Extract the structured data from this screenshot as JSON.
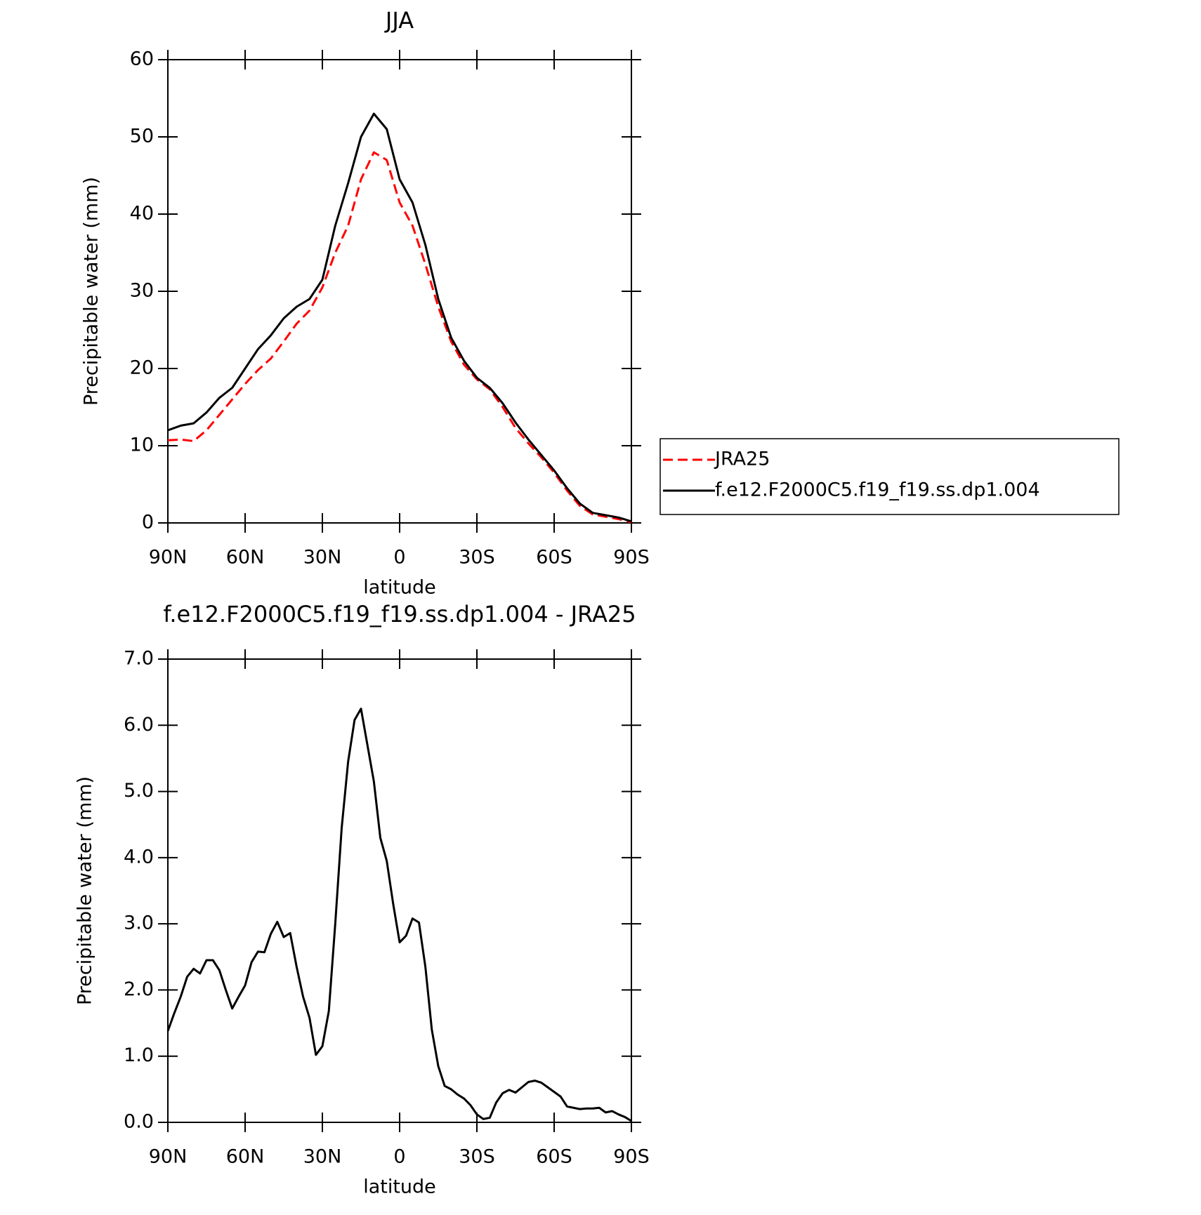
{
  "chart_data": [
    {
      "type": "line",
      "title": "JJA",
      "xlabel": "latitude",
      "ylabel": "Precipitable water (mm)",
      "x": [
        90,
        85,
        80,
        75,
        70,
        65,
        60,
        55,
        50,
        45,
        40,
        35,
        30,
        25,
        20,
        15,
        10,
        5,
        0,
        -5,
        -10,
        -15,
        -20,
        -25,
        -30,
        -35,
        -40,
        -45,
        -50,
        -55,
        -60,
        -65,
        -70,
        -75,
        -80,
        -85,
        -90
      ],
      "series": [
        {
          "name": "JRA25",
          "color": "#ff0000",
          "dashed": true,
          "values": [
            10.7,
            10.8,
            10.6,
            12.0,
            14.0,
            16.0,
            18.0,
            19.8,
            21.3,
            23.5,
            25.8,
            27.5,
            30.5,
            35.0,
            38.5,
            44.5,
            48.0,
            47.0,
            41.5,
            38.5,
            33.5,
            28.0,
            23.5,
            20.5,
            18.6,
            17.3,
            15.0,
            12.3,
            10.3,
            8.5,
            6.5,
            4.2,
            2.2,
            1.1,
            0.8,
            0.5,
            0.1
          ]
        },
        {
          "name": "f.e12.F2000C5.f19_f19.ss.dp1.004",
          "color": "#000000",
          "dashed": false,
          "values": [
            12.0,
            12.6,
            12.9,
            14.3,
            16.2,
            17.5,
            20.0,
            22.5,
            24.3,
            26.5,
            28.0,
            29.0,
            31.5,
            38.5,
            44.0,
            50.0,
            53.0,
            51.0,
            44.5,
            41.5,
            36.0,
            29.0,
            24.0,
            21.0,
            18.8,
            17.5,
            15.5,
            13.0,
            10.8,
            8.8,
            6.8,
            4.5,
            2.5,
            1.3,
            1.0,
            0.7,
            0.2
          ]
        }
      ],
      "xlim": [
        90,
        -90
      ],
      "xticks": [
        {
          "value": 90,
          "label": "90N"
        },
        {
          "value": 60,
          "label": "60N"
        },
        {
          "value": 30,
          "label": "30N"
        },
        0,
        {
          "value": -30,
          "label": "30S"
        },
        {
          "value": -60,
          "label": "60S"
        },
        {
          "value": -90,
          "label": "90S"
        }
      ],
      "ylim": [
        0,
        60
      ],
      "yticks": [
        0,
        10,
        20,
        30,
        40,
        50,
        60
      ],
      "legend": "right",
      "grid": false
    },
    {
      "type": "line",
      "title": "f.e12.F2000C5.f19_f19.ss.dp1.004 - JRA25",
      "xlabel": "latitude",
      "ylabel": "Precipitable water (mm)",
      "x": [
        90,
        87.5,
        85,
        82.5,
        80,
        77.5,
        75,
        72.5,
        70,
        67.5,
        65,
        62.5,
        60,
        57.5,
        55,
        52.5,
        50,
        47.5,
        45,
        42.5,
        40,
        37.5,
        35,
        32.5,
        30,
        27.5,
        25,
        22.5,
        20,
        17.5,
        15,
        12.5,
        10,
        7.5,
        5,
        2.5,
        0,
        -2.5,
        -5,
        -7.5,
        -10,
        -12.5,
        -15,
        -17.5,
        -20,
        -22.5,
        -25,
        -27.5,
        -30,
        -32.5,
        -35,
        -37.5,
        -40,
        -42.5,
        -45,
        -47.5,
        -50,
        -52.5,
        -55,
        -57.5,
        -60,
        -62.5,
        -65,
        -67.5,
        -70,
        -72.5,
        -75,
        -77.5,
        -80,
        -82.5,
        -85,
        -87.5,
        -90
      ],
      "series": [
        {
          "name": null,
          "color": "#000000",
          "dashed": false,
          "values": [
            1.38,
            1.65,
            1.9,
            2.2,
            2.32,
            2.25,
            2.45,
            2.45,
            2.3,
            2.0,
            1.72,
            1.9,
            2.07,
            2.42,
            2.58,
            2.57,
            2.85,
            3.03,
            2.8,
            2.86,
            2.35,
            1.9,
            1.58,
            1.02,
            1.15,
            1.68,
            3.0,
            4.45,
            5.45,
            6.08,
            6.25,
            5.7,
            5.15,
            4.3,
            3.95,
            3.3,
            2.72,
            2.82,
            3.08,
            3.02,
            2.35,
            1.4,
            0.85,
            0.55,
            0.5,
            0.42,
            0.36,
            0.26,
            0.12,
            0.05,
            0.07,
            0.3,
            0.44,
            0.49,
            0.45,
            0.53,
            0.61,
            0.63,
            0.6,
            0.53,
            0.46,
            0.39,
            0.24,
            0.22,
            0.2,
            0.21,
            0.21,
            0.22,
            0.15,
            0.17,
            0.12,
            0.08,
            0.02
          ]
        }
      ],
      "xlim": [
        90,
        -90
      ],
      "xticks": [
        {
          "value": 90,
          "label": "90N"
        },
        {
          "value": 60,
          "label": "60N"
        },
        {
          "value": 30,
          "label": "30N"
        },
        0,
        {
          "value": -30,
          "label": "30S"
        },
        {
          "value": -60,
          "label": "60S"
        },
        {
          "value": -90,
          "label": "90S"
        }
      ],
      "ylim": [
        0,
        7
      ],
      "yticks": [
        {
          "value": 0,
          "label": "0.0"
        },
        {
          "value": 1,
          "label": "1.0"
        },
        {
          "value": 2,
          "label": "2.0"
        },
        {
          "value": 3,
          "label": "3.0"
        },
        {
          "value": 4,
          "label": "4.0"
        },
        {
          "value": 5,
          "label": "5.0"
        },
        {
          "value": 6,
          "label": "6.0"
        },
        {
          "value": 7,
          "label": "7.0"
        }
      ],
      "grid": false
    }
  ]
}
